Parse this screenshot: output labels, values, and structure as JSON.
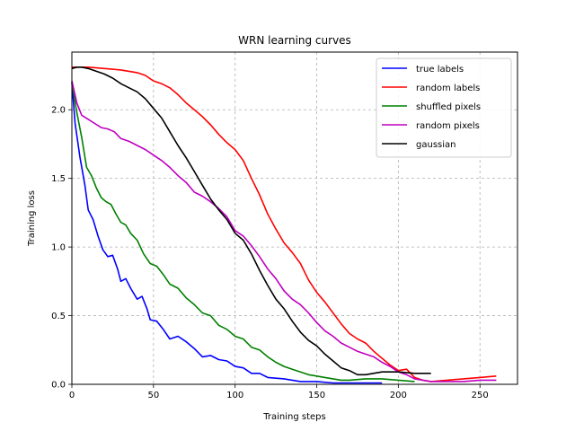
{
  "chart_data": {
    "type": "line",
    "title": "WRN learning curves",
    "xlabel": "Training steps",
    "ylabel": "Training loss",
    "xlim": [
      0,
      273
    ],
    "ylim": [
      0,
      2.42
    ],
    "x_ticks": [
      0,
      50,
      100,
      150,
      200,
      250
    ],
    "y_ticks": [
      0.0,
      0.5,
      1.0,
      1.5,
      2.0
    ],
    "x_tick_labels": [
      "0",
      "50",
      "100",
      "150",
      "200",
      "250"
    ],
    "y_tick_labels": [
      "0.0",
      "0.5",
      "1.0",
      "1.5",
      "2.0"
    ],
    "grid": true,
    "legend_position": "top-right",
    "series": [
      {
        "name": "true labels",
        "color": "#0000ff",
        "points": [
          [
            0,
            2.2
          ],
          [
            2,
            1.9
          ],
          [
            5,
            1.65
          ],
          [
            8,
            1.45
          ],
          [
            10,
            1.27
          ],
          [
            13,
            1.2
          ],
          [
            16,
            1.08
          ],
          [
            19,
            0.98
          ],
          [
            22,
            0.93
          ],
          [
            25,
            0.94
          ],
          [
            28,
            0.84
          ],
          [
            30,
            0.75
          ],
          [
            33,
            0.77
          ],
          [
            36,
            0.7
          ],
          [
            40,
            0.62
          ],
          [
            43,
            0.64
          ],
          [
            46,
            0.55
          ],
          [
            48,
            0.47
          ],
          [
            52,
            0.46
          ],
          [
            56,
            0.4
          ],
          [
            60,
            0.33
          ],
          [
            65,
            0.35
          ],
          [
            70,
            0.31
          ],
          [
            75,
            0.26
          ],
          [
            80,
            0.2
          ],
          [
            85,
            0.21
          ],
          [
            90,
            0.18
          ],
          [
            95,
            0.17
          ],
          [
            100,
            0.13
          ],
          [
            105,
            0.12
          ],
          [
            110,
            0.08
          ],
          [
            115,
            0.08
          ],
          [
            120,
            0.05
          ],
          [
            130,
            0.04
          ],
          [
            140,
            0.02
          ],
          [
            150,
            0.02
          ],
          [
            160,
            0.01
          ],
          [
            175,
            0.01
          ],
          [
            190,
            0.01
          ]
        ]
      },
      {
        "name": "random labels",
        "color": "#ff0000",
        "points": [
          [
            0,
            2.31
          ],
          [
            10,
            2.31
          ],
          [
            20,
            2.3
          ],
          [
            30,
            2.29
          ],
          [
            40,
            2.27
          ],
          [
            45,
            2.25
          ],
          [
            50,
            2.21
          ],
          [
            55,
            2.19
          ],
          [
            60,
            2.16
          ],
          [
            65,
            2.11
          ],
          [
            70,
            2.05
          ],
          [
            75,
            2.0
          ],
          [
            80,
            1.95
          ],
          [
            85,
            1.89
          ],
          [
            90,
            1.82
          ],
          [
            95,
            1.76
          ],
          [
            100,
            1.71
          ],
          [
            105,
            1.63
          ],
          [
            110,
            1.5
          ],
          [
            115,
            1.38
          ],
          [
            120,
            1.24
          ],
          [
            125,
            1.13
          ],
          [
            130,
            1.03
          ],
          [
            135,
            0.96
          ],
          [
            140,
            0.88
          ],
          [
            145,
            0.76
          ],
          [
            150,
            0.67
          ],
          [
            155,
            0.6
          ],
          [
            160,
            0.52
          ],
          [
            165,
            0.44
          ],
          [
            170,
            0.37
          ],
          [
            175,
            0.33
          ],
          [
            180,
            0.3
          ],
          [
            185,
            0.24
          ],
          [
            190,
            0.19
          ],
          [
            195,
            0.14
          ],
          [
            200,
            0.1
          ],
          [
            205,
            0.11
          ],
          [
            210,
            0.05
          ],
          [
            215,
            0.03
          ],
          [
            220,
            0.02
          ],
          [
            230,
            0.03
          ],
          [
            240,
            0.04
          ],
          [
            250,
            0.05
          ],
          [
            260,
            0.06
          ]
        ]
      },
      {
        "name": "shuffled pixels",
        "color": "#008000",
        "points": [
          [
            0,
            2.2
          ],
          [
            3,
            1.98
          ],
          [
            6,
            1.8
          ],
          [
            9,
            1.58
          ],
          [
            12,
            1.52
          ],
          [
            15,
            1.43
          ],
          [
            18,
            1.36
          ],
          [
            21,
            1.33
          ],
          [
            24,
            1.31
          ],
          [
            27,
            1.24
          ],
          [
            30,
            1.18
          ],
          [
            33,
            1.16
          ],
          [
            36,
            1.1
          ],
          [
            40,
            1.05
          ],
          [
            44,
            0.95
          ],
          [
            48,
            0.88
          ],
          [
            52,
            0.86
          ],
          [
            56,
            0.8
          ],
          [
            60,
            0.73
          ],
          [
            65,
            0.7
          ],
          [
            70,
            0.63
          ],
          [
            75,
            0.58
          ],
          [
            80,
            0.52
          ],
          [
            85,
            0.5
          ],
          [
            90,
            0.43
          ],
          [
            95,
            0.4
          ],
          [
            100,
            0.35
          ],
          [
            105,
            0.33
          ],
          [
            110,
            0.27
          ],
          [
            115,
            0.25
          ],
          [
            120,
            0.2
          ],
          [
            125,
            0.16
          ],
          [
            130,
            0.13
          ],
          [
            135,
            0.11
          ],
          [
            140,
            0.09
          ],
          [
            145,
            0.07
          ],
          [
            150,
            0.06
          ],
          [
            155,
            0.05
          ],
          [
            160,
            0.04
          ],
          [
            165,
            0.03
          ],
          [
            170,
            0.03
          ],
          [
            180,
            0.04
          ],
          [
            190,
            0.04
          ],
          [
            200,
            0.03
          ],
          [
            210,
            0.02
          ]
        ]
      },
      {
        "name": "random pixels",
        "color": "#bf00bf",
        "points": [
          [
            0,
            2.21
          ],
          [
            3,
            2.05
          ],
          [
            6,
            1.96
          ],
          [
            10,
            1.93
          ],
          [
            14,
            1.9
          ],
          [
            18,
            1.87
          ],
          [
            22,
            1.86
          ],
          [
            26,
            1.84
          ],
          [
            30,
            1.79
          ],
          [
            35,
            1.77
          ],
          [
            40,
            1.74
          ],
          [
            45,
            1.71
          ],
          [
            50,
            1.67
          ],
          [
            55,
            1.63
          ],
          [
            60,
            1.58
          ],
          [
            65,
            1.52
          ],
          [
            70,
            1.47
          ],
          [
            75,
            1.4
          ],
          [
            80,
            1.37
          ],
          [
            85,
            1.33
          ],
          [
            90,
            1.28
          ],
          [
            95,
            1.22
          ],
          [
            100,
            1.12
          ],
          [
            105,
            1.08
          ],
          [
            110,
            1.01
          ],
          [
            115,
            0.93
          ],
          [
            120,
            0.84
          ],
          [
            125,
            0.77
          ],
          [
            130,
            0.68
          ],
          [
            135,
            0.62
          ],
          [
            140,
            0.58
          ],
          [
            145,
            0.52
          ],
          [
            150,
            0.45
          ],
          [
            155,
            0.39
          ],
          [
            160,
            0.35
          ],
          [
            165,
            0.3
          ],
          [
            170,
            0.27
          ],
          [
            175,
            0.24
          ],
          [
            180,
            0.22
          ],
          [
            185,
            0.2
          ],
          [
            190,
            0.16
          ],
          [
            195,
            0.13
          ],
          [
            200,
            0.09
          ],
          [
            205,
            0.07
          ],
          [
            210,
            0.04
          ],
          [
            215,
            0.03
          ],
          [
            220,
            0.02
          ],
          [
            230,
            0.02
          ],
          [
            240,
            0.02
          ],
          [
            250,
            0.03
          ],
          [
            260,
            0.03
          ]
        ]
      },
      {
        "name": "gaussian",
        "color": "#000000",
        "points": [
          [
            0,
            2.3
          ],
          [
            3,
            2.31
          ],
          [
            6,
            2.31
          ],
          [
            10,
            2.3
          ],
          [
            15,
            2.28
          ],
          [
            20,
            2.26
          ],
          [
            25,
            2.23
          ],
          [
            30,
            2.19
          ],
          [
            35,
            2.16
          ],
          [
            40,
            2.13
          ],
          [
            45,
            2.08
          ],
          [
            50,
            2.01
          ],
          [
            55,
            1.94
          ],
          [
            60,
            1.84
          ],
          [
            65,
            1.74
          ],
          [
            70,
            1.65
          ],
          [
            75,
            1.55
          ],
          [
            80,
            1.45
          ],
          [
            85,
            1.35
          ],
          [
            90,
            1.27
          ],
          [
            95,
            1.2
          ],
          [
            100,
            1.1
          ],
          [
            105,
            1.05
          ],
          [
            110,
            0.95
          ],
          [
            115,
            0.83
          ],
          [
            120,
            0.72
          ],
          [
            125,
            0.62
          ],
          [
            130,
            0.55
          ],
          [
            135,
            0.46
          ],
          [
            140,
            0.38
          ],
          [
            145,
            0.32
          ],
          [
            150,
            0.28
          ],
          [
            155,
            0.22
          ],
          [
            160,
            0.17
          ],
          [
            165,
            0.12
          ],
          [
            170,
            0.1
          ],
          [
            175,
            0.07
          ],
          [
            180,
            0.07
          ],
          [
            190,
            0.09
          ],
          [
            200,
            0.09
          ],
          [
            210,
            0.08
          ],
          [
            220,
            0.08
          ]
        ]
      }
    ]
  }
}
